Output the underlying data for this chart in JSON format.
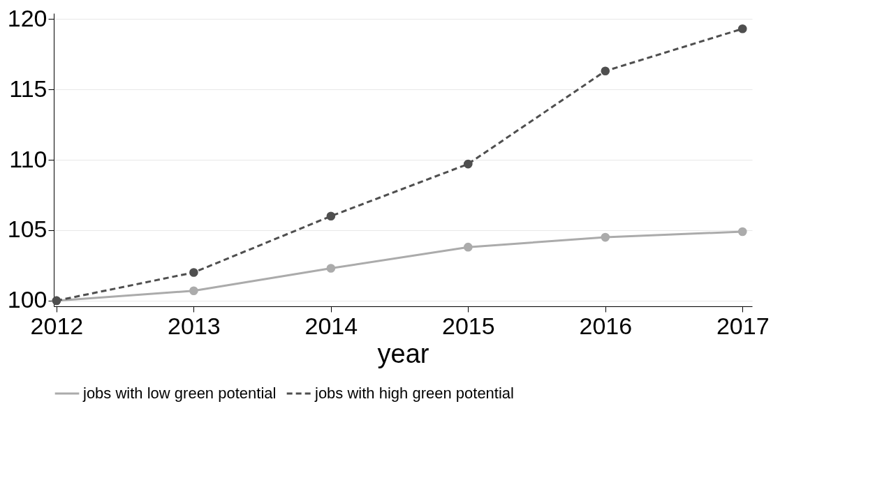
{
  "chart_data": {
    "type": "line",
    "xlabel": "year",
    "x": [
      2012,
      2013,
      2014,
      2015,
      2016,
      2017
    ],
    "series": [
      {
        "name": "jobs with low green potential",
        "color": "#ababab",
        "line_style": "solid",
        "values": [
          100,
          100.7,
          102.3,
          103.8,
          104.5,
          104.9
        ]
      },
      {
        "name": "jobs with high green potential",
        "color": "#4f4f4f",
        "line_style": "dashed",
        "values": [
          100,
          102.0,
          106.0,
          109.7,
          116.3,
          119.3
        ]
      }
    ],
    "xlim": [
      2011.98,
      2017.07
    ],
    "xticks": [
      2012,
      2013,
      2014,
      2015,
      2016,
      2017
    ],
    "ylim": [
      99.6,
      120.4
    ],
    "yticks": [
      100,
      105,
      110,
      115,
      120
    ],
    "grid": "y",
    "legend": "bottom",
    "marker": "circle"
  }
}
